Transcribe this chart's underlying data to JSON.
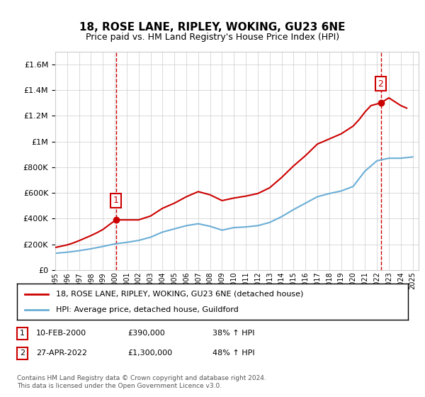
{
  "title": "18, ROSE LANE, RIPLEY, WOKING, GU23 6NE",
  "subtitle": "Price paid vs. HM Land Registry's House Price Index (HPI)",
  "legend_line1": "18, ROSE LANE, RIPLEY, WOKING, GU23 6NE (detached house)",
  "legend_line2": "HPI: Average price, detached house, Guildford",
  "annotation1_label": "1",
  "annotation1_date": "10-FEB-2000",
  "annotation1_price": "£390,000",
  "annotation1_hpi": "38% ↑ HPI",
  "annotation2_label": "2",
  "annotation2_date": "27-APR-2022",
  "annotation2_price": "£1,300,000",
  "annotation2_hpi": "48% ↑ HPI",
  "footnote": "Contains HM Land Registry data © Crown copyright and database right 2024.\nThis data is licensed under the Open Government Licence v3.0.",
  "sale1_year": 2000.1,
  "sale1_price": 390000,
  "sale2_year": 2022.32,
  "sale2_price": 1300000,
  "hpi_color": "#6baed6",
  "price_color": "#cc0000",
  "vline_color": "#cc0000",
  "ylim_max": 1700000,
  "ylim_min": 0,
  "xlim_min": 1995,
  "xlim_max": 2025.5,
  "hpi_years": [
    1995,
    1996,
    1997,
    1998,
    1999,
    2000,
    2001,
    2002,
    2003,
    2004,
    2005,
    2006,
    2007,
    2008,
    2009,
    2010,
    2011,
    2012,
    2013,
    2014,
    2015,
    2016,
    2017,
    2018,
    2019,
    2020,
    2021,
    2022,
    2023,
    2024,
    2025
  ],
  "hpi_values": [
    130000,
    138000,
    150000,
    165000,
    183000,
    203000,
    215000,
    230000,
    255000,
    295000,
    320000,
    345000,
    360000,
    340000,
    310000,
    330000,
    335000,
    345000,
    370000,
    415000,
    470000,
    520000,
    570000,
    595000,
    615000,
    650000,
    770000,
    850000,
    870000,
    870000,
    880000
  ],
  "price_years": [
    1995,
    1995.5,
    1996,
    1996.5,
    1997,
    1997.5,
    1998,
    1998.5,
    1999,
    1999.5,
    2000.1,
    2001,
    2002,
    2003,
    2004,
    2005,
    2006,
    2007,
    2008,
    2009,
    2010,
    2011,
    2012,
    2013,
    2014,
    2015,
    2016,
    2017,
    2018,
    2019,
    2020,
    2020.5,
    2021,
    2021.5,
    2022.32,
    2023,
    2023.5,
    2024,
    2024.5
  ],
  "price_values": [
    175000,
    185000,
    195000,
    210000,
    228000,
    248000,
    268000,
    290000,
    315000,
    350000,
    390000,
    390000,
    390000,
    420000,
    480000,
    520000,
    570000,
    610000,
    585000,
    540000,
    560000,
    575000,
    595000,
    640000,
    720000,
    810000,
    890000,
    980000,
    1020000,
    1060000,
    1120000,
    1170000,
    1230000,
    1280000,
    1300000,
    1340000,
    1310000,
    1280000,
    1260000
  ]
}
